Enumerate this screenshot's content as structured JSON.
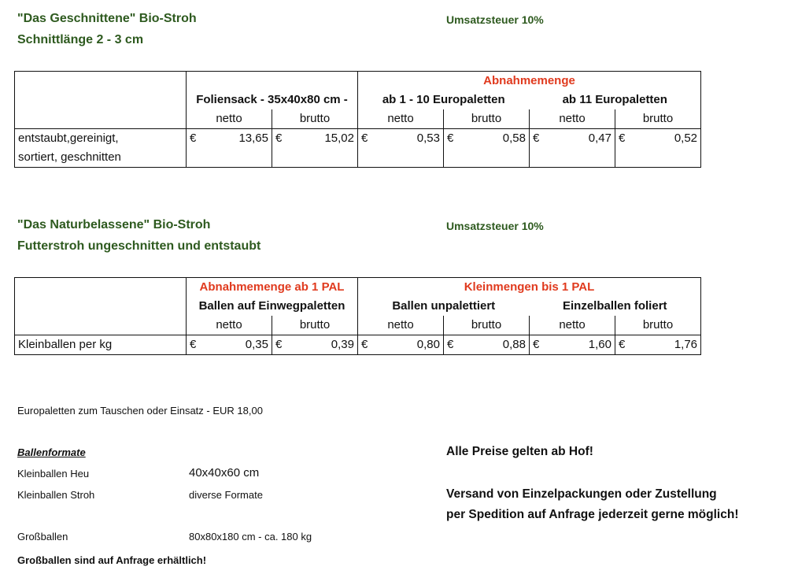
{
  "section1": {
    "title": "\"Das Geschnittene\" Bio-Stroh",
    "subtitle": "Schnittlänge 2 - 3 cm",
    "vat": "Umsatzsteuer 10%",
    "table": {
      "group_header": "Abnahmemenge",
      "columns": [
        "Foliensack - 35x40x80 cm -",
        "ab 1 - 10 Europaletten",
        "ab 11 Europaletten"
      ],
      "sub_headers": [
        "netto",
        "brutto",
        "netto",
        "brutto",
        "netto",
        "brutto"
      ],
      "row_label_line1": "entstaubt,gereinigt,",
      "row_label_line2": "sortiert, geschnitten",
      "currency": "€",
      "values": [
        "13,65",
        "15,02",
        "0,53",
        "0,58",
        "0,47",
        "0,52"
      ]
    }
  },
  "section2": {
    "title": "\"Das Naturbelassene\" Bio-Stroh",
    "subtitle": "Futterstroh ungeschnitten und entstaubt",
    "vat": "Umsatzsteuer 10%",
    "table": {
      "group_header_left": "Abnahmemenge ab 1 PAL",
      "group_header_right": "Kleinmengen bis 1 PAL",
      "columns": [
        "Ballen auf Einwegpaletten",
        "Ballen unpalettiert",
        "Einzelballen foliert"
      ],
      "sub_headers": [
        "netto",
        "brutto",
        "netto",
        "brutto",
        "netto",
        "brutto"
      ],
      "row_label": "Kleinballen per kg",
      "currency": "€",
      "values": [
        "0,35",
        "0,39",
        "0,80",
        "0,88",
        "1,60",
        "1,76"
      ]
    }
  },
  "notes": {
    "europaletten": "Europaletten zum Tauschen oder Einsatz - EUR 18,00",
    "ballenformate_title": "Ballenformate",
    "rows": [
      {
        "label": "Kleinballen Heu",
        "value": "40x40x60 cm"
      },
      {
        "label": "Kleinballen Stroh",
        "value": "diverse Formate"
      },
      {
        "label": "Großballen",
        "value": "80x80x180 cm - ca. 180 kg"
      }
    ],
    "grossballen_note": "Großballen sind auf Anfrage erhältlich!"
  },
  "right_notes": {
    "line1": "Alle Preise gelten ab Hof!",
    "line2": "Versand von Einzelpackungen oder Zustellung",
    "line3": "per Spedition auf Anfrage jederzeit gerne möglich!"
  }
}
